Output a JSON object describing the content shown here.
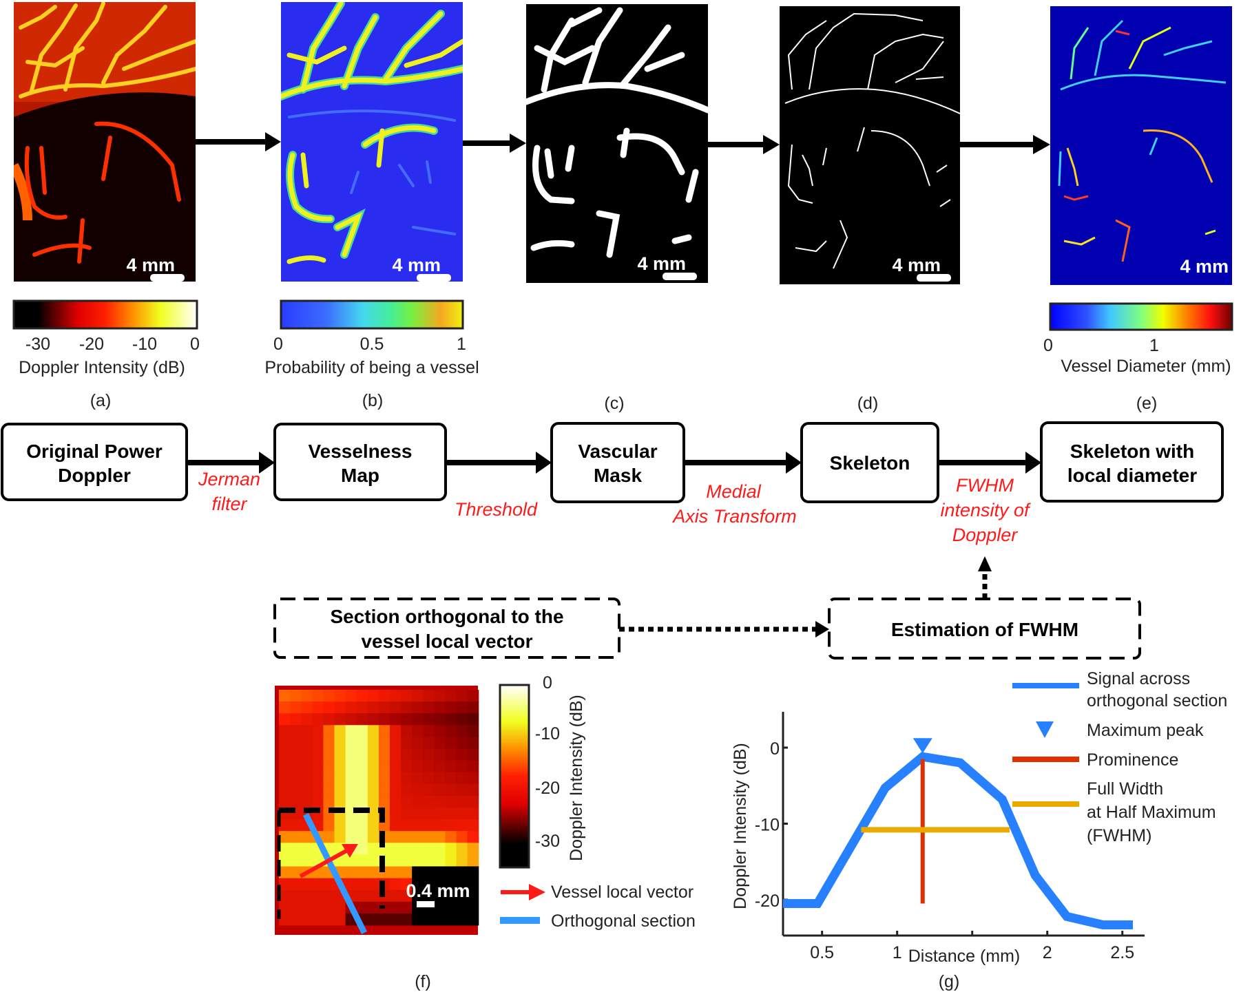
{
  "panels": [
    {
      "id": "a",
      "caption": "(a)",
      "scale_bar": "4 mm",
      "colorbar": {
        "ticks": [
          "-30",
          "-20",
          "-10",
          "0"
        ],
        "label": "Doppler Intensity (dB)",
        "colormap": "hot"
      }
    },
    {
      "id": "b",
      "caption": "(b)",
      "scale_bar": "4 mm",
      "colorbar": {
        "ticks": [
          "0",
          "0.5",
          "1"
        ],
        "label": "Probability of being a vessel",
        "colormap": "parula"
      }
    },
    {
      "id": "c",
      "caption": "(c)",
      "scale_bar": "4 mm"
    },
    {
      "id": "d",
      "caption": "(d)",
      "scale_bar": "4 mm"
    },
    {
      "id": "e",
      "caption": "(e)",
      "scale_bar": "4 mm",
      "colorbar": {
        "ticks": [
          "0",
          "1"
        ],
        "label": "Vessel Diameter (mm)",
        "colormap": "jet"
      }
    }
  ],
  "flow": {
    "boxes": [
      {
        "line1": "Original Power",
        "line2": "Doppler"
      },
      {
        "line1": "Vesselness",
        "line2": "Map"
      },
      {
        "line1": "Vascular",
        "line2": "Mask"
      },
      {
        "line1": "Skeleton",
        "line2": ""
      },
      {
        "line1": "Skeleton with",
        "line2": "local diameter"
      }
    ],
    "steps": [
      {
        "line1": "Jerman",
        "line2": "filter"
      },
      {
        "line1": "Threshold",
        "line2": ""
      },
      {
        "line1": "Medial",
        "line2": "Axis Transform"
      },
      {
        "line1": "FWHM",
        "line2": "intensity of",
        "line3": "Doppler"
      }
    ],
    "dashed_boxes": [
      {
        "line1": "Section orthogonal to the",
        "line2": "vessel local vector"
      },
      {
        "line1": "Estimation of FWHM"
      }
    ]
  },
  "panel_f": {
    "caption": "(f)",
    "scale_bar": "0.4 mm",
    "colorbar": {
      "ticks": [
        "0",
        "-10",
        "-20",
        "-30"
      ],
      "label": "Doppler Intensity (dB)"
    },
    "legend": [
      {
        "label": "Vessel local vector",
        "color": "#ff1a1a",
        "icon": "arrow-right-icon"
      },
      {
        "label": "Orthogonal section",
        "color": "#3399ff",
        "icon": "line-icon"
      }
    ]
  },
  "chart_data": {
    "type": "line",
    "caption": "(g)",
    "xlabel": "Distance (mm)",
    "ylabel": "Doppler Intensity (dB)",
    "xlim": [
      0.24,
      2.57
    ],
    "ylim": [
      -25,
      4
    ],
    "xticks": [
      0.5,
      1,
      1.5,
      2,
      2.5
    ],
    "xtick_labels": [
      "0.5",
      "1",
      "",
      "2",
      "2.5"
    ],
    "yticks": [
      0,
      -10,
      -20
    ],
    "ytick_labels": [
      "0",
      "-10",
      "-20"
    ],
    "grid": false,
    "legend_position": "top-right",
    "series": [
      {
        "name": "Signal across orthogonal section",
        "color": "#2680ff",
        "x": [
          0.24,
          0.47,
          0.92,
          1.17,
          1.42,
          1.7,
          1.92,
          2.13,
          2.37,
          2.57
        ],
        "y": [
          -20.5,
          -20.5,
          -5.3,
          -1.2,
          -2.0,
          -6.8,
          -16.8,
          -22.2,
          -23.3,
          -23.3
        ]
      }
    ],
    "annotations": {
      "max_peak": {
        "label": "Maximum peak",
        "x": 1.17,
        "y": -0.2,
        "color": "#2680ff"
      },
      "prominence": {
        "label": "Prominence",
        "x": 1.17,
        "y_from": -1.5,
        "y_to": -20.5,
        "color": "#e03000"
      },
      "fwhm": {
        "label_lines": [
          "Full Width",
          "at Half Maximum",
          "(FWHM)"
        ],
        "x_from": 0.76,
        "x_to": 1.75,
        "y": -10.8,
        "color": "#eaaa00"
      }
    },
    "legend": [
      {
        "lines": [
          "Signal across",
          "orthogonal section"
        ],
        "type": "line",
        "color": "#2680ff"
      },
      {
        "lines": [
          "Maximum peak"
        ],
        "type": "marker",
        "color": "#2680ff"
      },
      {
        "lines": [
          "Prominence"
        ],
        "type": "line",
        "color": "#e03000"
      },
      {
        "lines": [
          "Full Width",
          "at Half Maximum",
          "(FWHM)"
        ],
        "type": "line",
        "color": "#eaaa00"
      }
    ]
  }
}
